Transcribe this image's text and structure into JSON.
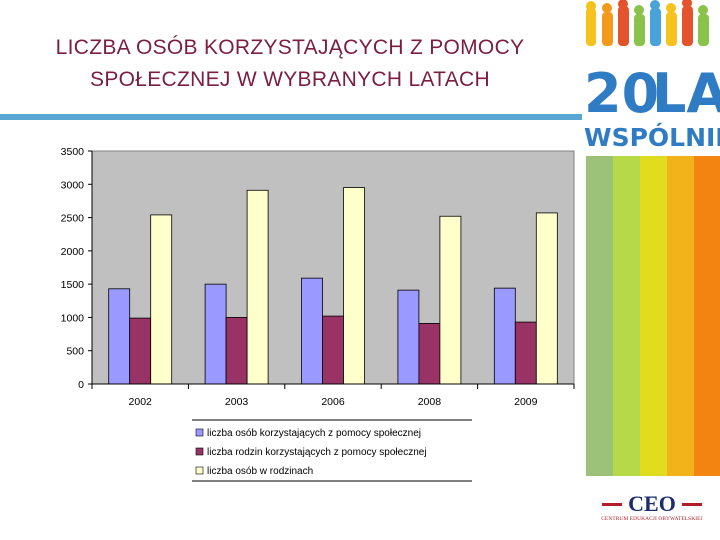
{
  "slide": {
    "title_lines": [
      "LICZBA OSÓB KORZYSTAJĄCYCH Z POMOCY",
      "SPOŁECZNEJ W WYBRANYCH LATACH"
    ]
  },
  "logo_20": {
    "number": "20",
    "word1": "LAT",
    "word2": "WSPÓLNIE"
  },
  "ceo_logo": {
    "word": "CEO",
    "subtitle": "CENTRUM EDUKACJI OBYWATELSKIEJ"
  },
  "colors": {
    "title": "#7a1f3d",
    "accent_bar": "#5aa6d2",
    "plot_bg": "#c0c0c0",
    "stripes": [
      "#9cc27a",
      "#b6d94a",
      "#e1dc1e",
      "#f1b21a",
      "#f38412",
      "#ef5138"
    ]
  },
  "chart_data": {
    "type": "bar",
    "title": "",
    "xlabel": "",
    "ylabel": "",
    "categories": [
      "2002",
      "2003",
      "2006",
      "2008",
      "2009"
    ],
    "ylim": [
      0,
      3500
    ],
    "yticks": [
      "0",
      "500",
      "1000",
      "1500",
      "2000",
      "2500",
      "3000",
      "3500"
    ],
    "grid": false,
    "legend_position": "bottom",
    "series": [
      {
        "name": "liczba osób korzystających z pomocy społecznej",
        "color": "#9999ff",
        "values": [
          1430,
          1500,
          1590,
          1410,
          1440
        ]
      },
      {
        "name": "liczba rodzin korzystających z pomocy społecznej",
        "color": "#993366",
        "values": [
          990,
          1000,
          1020,
          910,
          930
        ]
      },
      {
        "name": "liczba osób w rodzinach",
        "color": "#ffffcc",
        "values": [
          2540,
          2910,
          2950,
          2520,
          2570
        ]
      }
    ]
  }
}
